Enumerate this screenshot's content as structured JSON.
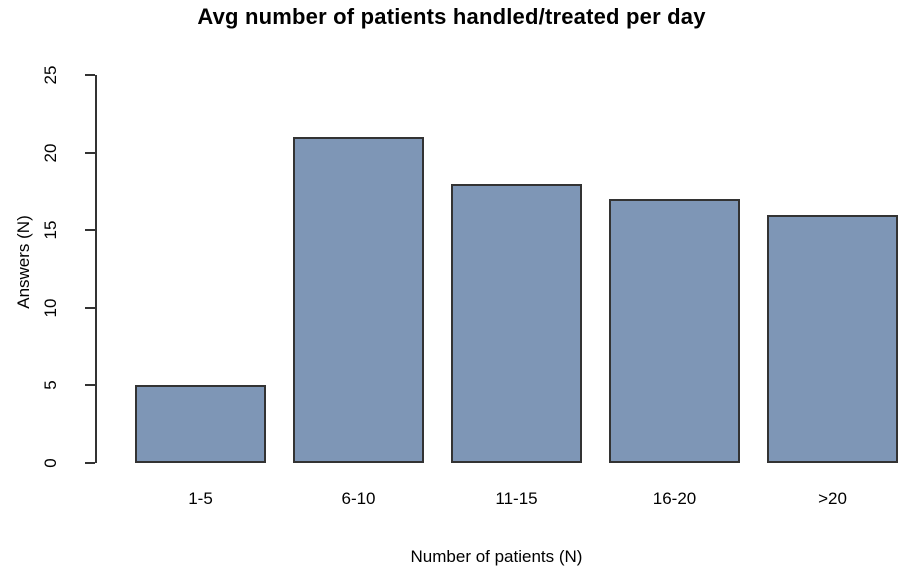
{
  "chart_data": {
    "type": "bar",
    "title": "Avg number of patients handled/treated per day",
    "xlabel": "Number of patients (N)",
    "ylabel": "Answers (N)",
    "categories": [
      "1-5",
      "6-10",
      "11-15",
      "16-20",
      ">20"
    ],
    "values": [
      5,
      21,
      18,
      17,
      16
    ],
    "ylim": [
      0,
      25
    ],
    "yticks": [
      0,
      5,
      10,
      15,
      20,
      25
    ],
    "grid": false,
    "legend": "none",
    "colors": {
      "bar_fill": "#7E96B6",
      "bar_border": "#333333",
      "axis": "#333333",
      "text": "#000000",
      "background": "#FFFFFF"
    }
  }
}
